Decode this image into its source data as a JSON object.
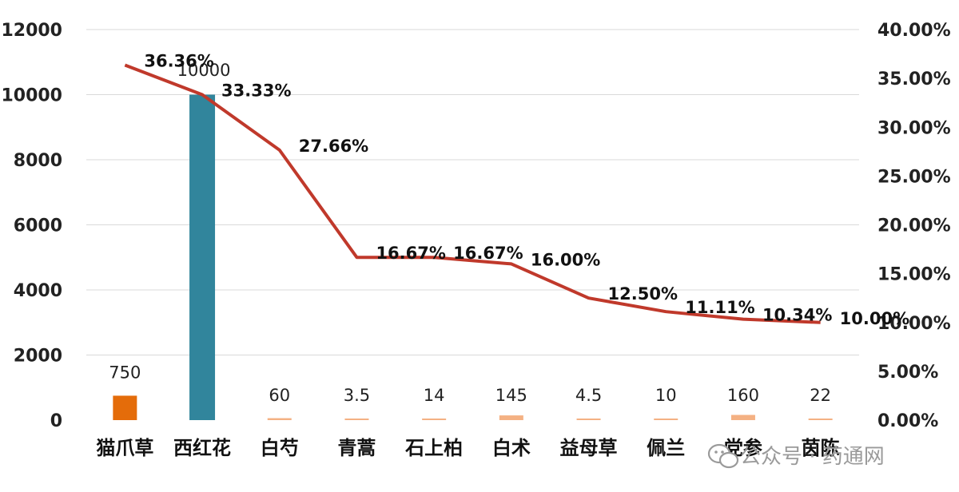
{
  "chart_data": {
    "type": "bar+line",
    "categories": [
      "猫爪草",
      "西红花",
      "白芍",
      "青蒿",
      "石上柏",
      "白术",
      "益母草",
      "佩兰",
      "党参",
      "茵陈"
    ],
    "bar_series": {
      "values": [
        750,
        10000,
        60,
        3.5,
        14,
        145,
        4.5,
        10,
        160,
        22
      ],
      "labels": [
        "750",
        "10000",
        "60",
        "3.5",
        "14",
        "145",
        "4.5",
        "10",
        "160",
        "22"
      ],
      "colors": [
        "#e46c0a",
        "#31859c",
        "#f4b183",
        "#f4b183",
        "#f4b183",
        "#f4b183",
        "#f4b183",
        "#f4b183",
        "#f4b183",
        "#f4b183"
      ]
    },
    "line_series": {
      "values": [
        36.36,
        33.33,
        27.66,
        16.67,
        16.67,
        16.0,
        12.5,
        11.11,
        10.34,
        10.0
      ],
      "labels": [
        "36.36%",
        "33.33%",
        "27.66%",
        "16.67%",
        "16.67%",
        "16.00%",
        "12.50%",
        "11.11%",
        "10.34%",
        "10.00%"
      ],
      "color": "#c0392b"
    },
    "y_left": {
      "min": 0,
      "max": 12000,
      "ticks": [
        "0",
        "2000",
        "4000",
        "6000",
        "8000",
        "10000",
        "12000"
      ]
    },
    "y_right": {
      "min": 0,
      "max": 40,
      "ticks": [
        "0.00%",
        "5.00%",
        "10.00%",
        "15.00%",
        "20.00%",
        "25.00%",
        "30.00%",
        "35.00%",
        "40.00%"
      ]
    },
    "grid": true,
    "legend": "none"
  },
  "watermark": {
    "text": "公众号 · 药通网",
    "icon": "wechat-icon"
  }
}
